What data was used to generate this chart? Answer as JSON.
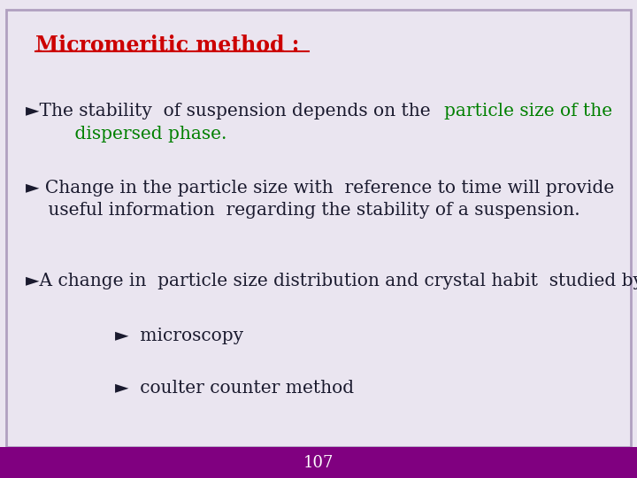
{
  "bg_color": "#eae5f0",
  "border_color": "#b0a0c0",
  "footer_color": "#800080",
  "footer_text": "107",
  "footer_text_color": "#ffffff",
  "title": "Micromeritic method :",
  "title_color": "#cc0000",
  "line1_black": "►The stability  of suspension depends on the ",
  "line1_green": "particle size of the",
  "line1_green2": "    dispersed phase.",
  "line1_color_black": "#1a1a2e",
  "line1_color_green": "#008000",
  "line2a": "► Change in the particle size with  reference to time will provide",
  "line2b": "    useful information  regarding the stability of a suspension.",
  "line2_color": "#1a1a2e",
  "line3": "►A change in  particle size distribution and crystal habit  studied by",
  "line3_color": "#1a1a2e",
  "line4": "►  microscopy",
  "line4_color": "#1a1a2e",
  "line5": "►  coulter counter method",
  "line5_color": "#1a1a2e",
  "fontsize_main": 14.5,
  "fontsize_title": 17,
  "fontsize_footer": 13
}
